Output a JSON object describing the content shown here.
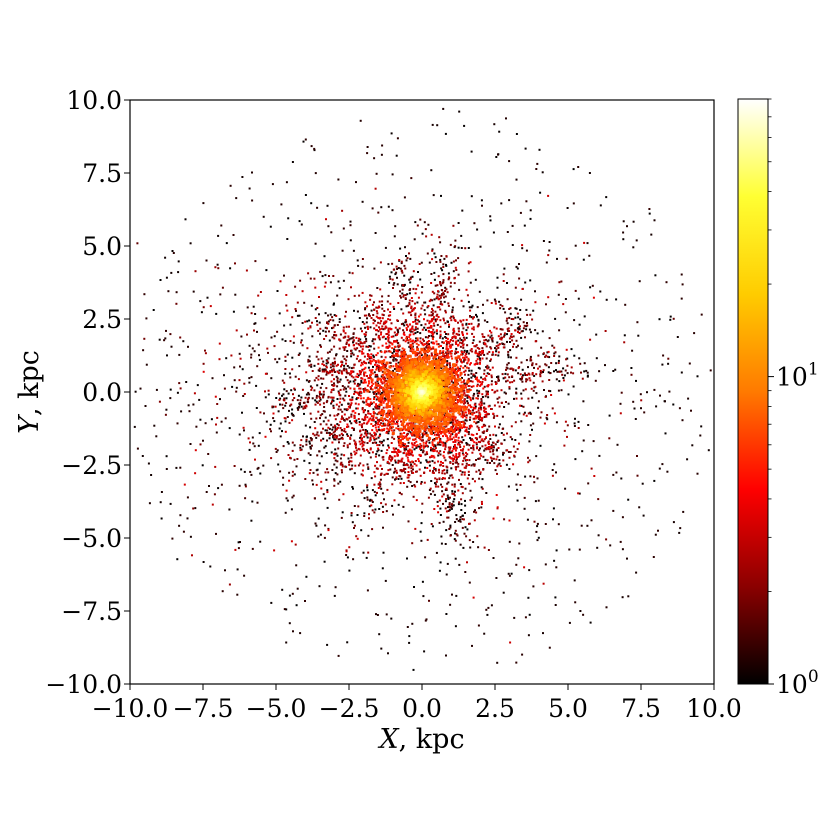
{
  "chart_data": {
    "type": "heatmap",
    "title": "",
    "xlabel_var": "X",
    "xlabel_unit": ", kpc",
    "ylabel_var": "Y",
    "ylabel_unit": ", kpc",
    "xlim": [
      -10.0,
      10.0
    ],
    "ylim": [
      -10.0,
      10.0
    ],
    "xticks": [
      -10.0,
      -7.5,
      -5.0,
      -2.5,
      0.0,
      2.5,
      5.0,
      7.5,
      10.0
    ],
    "xtick_labels": [
      "−10.0",
      "−7.5",
      "−5.0",
      "−2.5",
      "0.0",
      "2.5",
      "5.0",
      "7.5",
      "10.0"
    ],
    "yticks": [
      -10.0,
      -7.5,
      -5.0,
      -2.5,
      0.0,
      2.5,
      5.0,
      7.5,
      10.0
    ],
    "ytick_labels": [
      "−10.0",
      "−7.5",
      "−5.0",
      "−2.5",
      "0.0",
      "2.5",
      "5.0",
      "7.5",
      "10.0"
    ],
    "grid": false,
    "colormap": "hot",
    "color_scale": "log",
    "colorbar": {
      "range": [
        1,
        80
      ],
      "ticks": [
        {
          "value": 1,
          "base": "10",
          "exp": "0"
        },
        {
          "value": 10,
          "base": "10",
          "exp": "1"
        }
      ],
      "colors": [
        "#000000",
        "#8b0000",
        "#ff0000",
        "#ff7a00",
        "#ffcc00",
        "#ffff33",
        "#ffffff"
      ]
    },
    "structure": {
      "core_center": [
        0.0,
        0.0
      ],
      "core_peak_counts": 60,
      "core_radius_kpc": 1.0,
      "halo_radius_kpc": 3.0,
      "background_extent_kpc": 9.5,
      "rays_deg": [
        10,
        35,
        58,
        80,
        100,
        120,
        145,
        165,
        185,
        205,
        222,
        245,
        262,
        285,
        300,
        320,
        340
      ]
    }
  }
}
